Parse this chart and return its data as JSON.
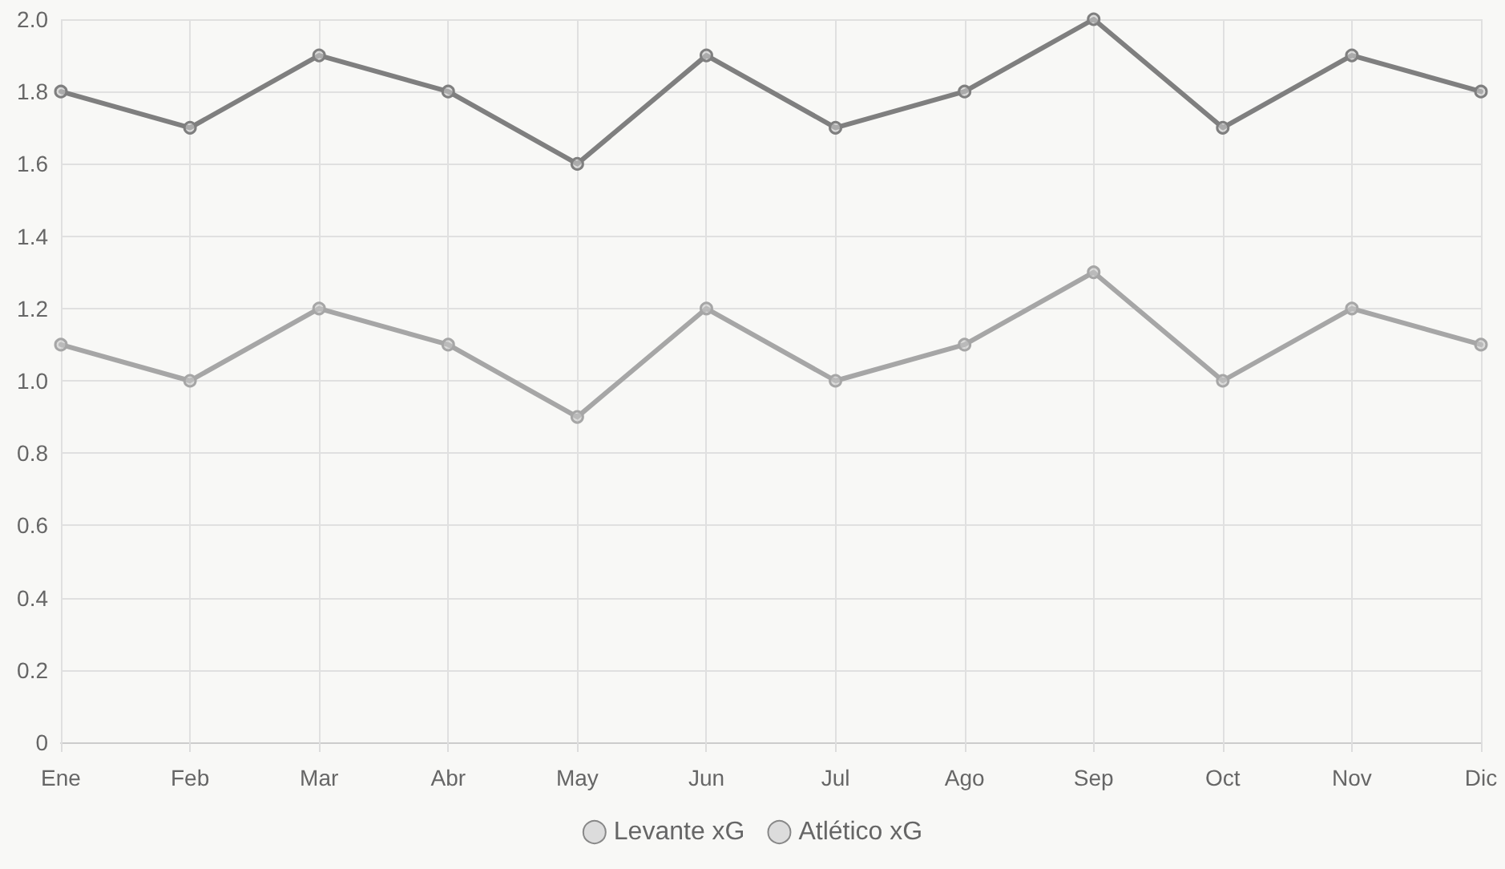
{
  "chart_data": {
    "type": "line",
    "categories": [
      "Ene",
      "Feb",
      "Mar",
      "Abr",
      "May",
      "Jun",
      "Jul",
      "Ago",
      "Sep",
      "Oct",
      "Nov",
      "Dic"
    ],
    "series": [
      {
        "name": "Levante xG",
        "color": "#a6a6a6",
        "values": [
          1.1,
          1.0,
          1.2,
          1.1,
          0.9,
          1.2,
          1.0,
          1.1,
          1.3,
          1.0,
          1.2,
          1.1
        ]
      },
      {
        "name": "Atlético xG",
        "color": "#7f7f7f",
        "values": [
          1.8,
          1.7,
          1.9,
          1.8,
          1.6,
          1.9,
          1.7,
          1.8,
          2.0,
          1.7,
          1.9,
          1.8
        ]
      }
    ],
    "ylim": [
      0,
      2.0
    ],
    "yticks": [
      0,
      0.2,
      0.4,
      0.6,
      0.8,
      {
        "value": 1,
        "label": "1.0"
      },
      1.2,
      1.4,
      1.6,
      1.8,
      {
        "value": 2,
        "label": "2.0"
      }
    ],
    "grid": true,
    "legend": "bottom",
    "marker": "circle",
    "line_style": "solid"
  }
}
